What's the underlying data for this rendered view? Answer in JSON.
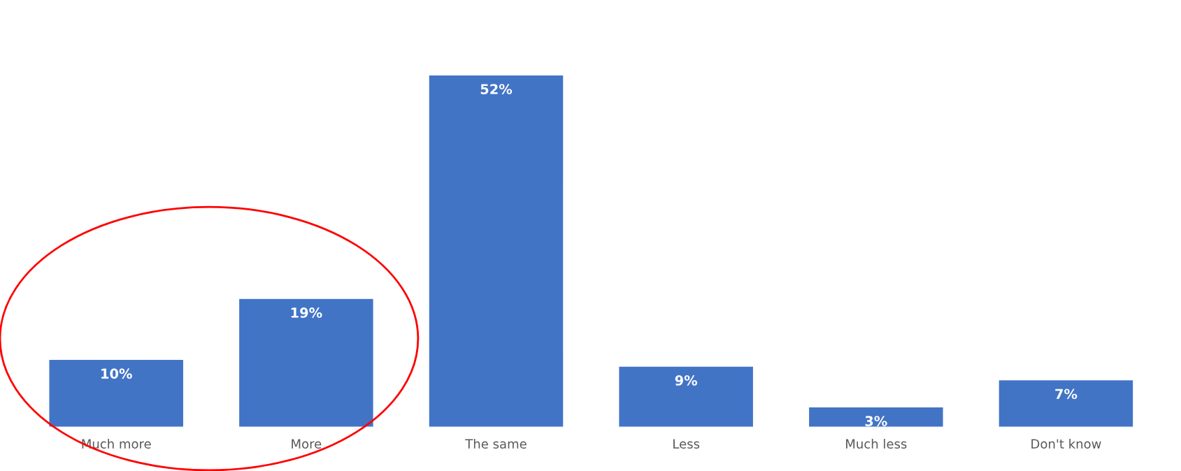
{
  "chart_data": {
    "type": "bar",
    "categories": [
      "Much more",
      "More",
      "The same",
      "Less",
      "Much less",
      "Don't know"
    ],
    "values": [
      10,
      19,
      52,
      9,
      3,
      7
    ],
    "value_labels": [
      "10%",
      "19%",
      "52%",
      "9%",
      "3%",
      "7%"
    ],
    "color": "#4274c6",
    "tick_labels": "x",
    "grid": false,
    "legend": false
  }
}
